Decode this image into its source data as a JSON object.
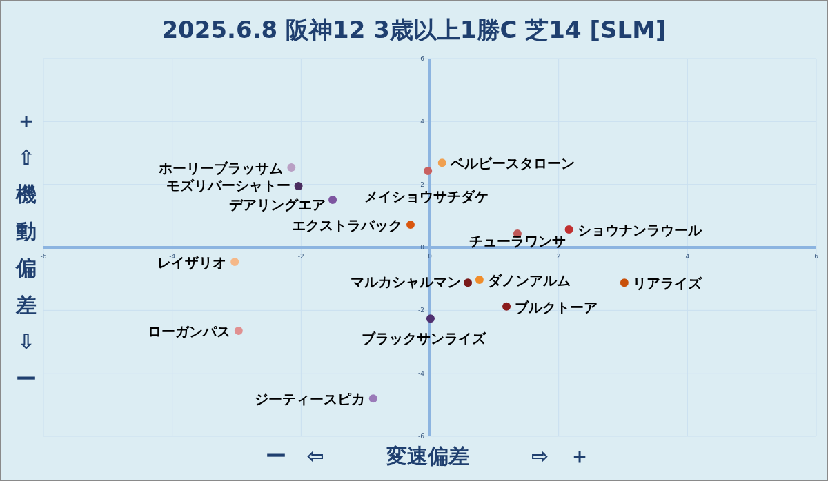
{
  "chart_data": {
    "type": "scatter",
    "title": "2025.6.8 阪神12 3歳以上1勝C 芝14 [SLM]",
    "xlabel": "ー　⇦　　　変速偏差　　　⇨　＋",
    "ylabel": "＋⇧機動偏差⇩ー",
    "xlim": [
      -6,
      6
    ],
    "ylim": [
      -6,
      6
    ],
    "xticks": [
      -6,
      -4,
      -2,
      0,
      2,
      4,
      6
    ],
    "yticks": [
      -6,
      -4,
      -2,
      0,
      2,
      4,
      6
    ],
    "grid": true,
    "legend": false,
    "marker": "circle",
    "series": [
      {
        "name": "ホーリーブラッサム",
        "color": "#b9a0c4",
        "x": [
          -2.15
        ],
        "values": [
          2.54
        ]
      },
      {
        "name": "モズリバーシャトー",
        "color": "#4a2c5e",
        "x": [
          -2.04
        ],
        "values": [
          1.95
        ]
      },
      {
        "name": "デアリングエア",
        "color": "#7d55a0",
        "x": [
          -1.51
        ],
        "values": [
          1.51
        ]
      },
      {
        "name": "エクストラバック",
        "color": "#d9560e",
        "x": [
          -0.3
        ],
        "values": [
          0.72
        ]
      },
      {
        "name": "ベルビースタローン",
        "color": "#f0a050",
        "x": [
          0.19
        ],
        "values": [
          2.69
        ]
      },
      {
        "name": "メイショウサチダケ",
        "color": "#c86060",
        "x": [
          -0.03
        ],
        "values": [
          2.43
        ]
      },
      {
        "name": "ショウナンラウール",
        "color": "#c03030",
        "x": [
          2.16
        ],
        "values": [
          0.57
        ]
      },
      {
        "name": "チューラワンサ",
        "color": "#c05858",
        "x": [
          1.36
        ],
        "values": [
          0.44
        ]
      },
      {
        "name": "レイザリオ",
        "color": "#f5b888",
        "x": [
          -3.03
        ],
        "values": [
          -0.46
        ]
      },
      {
        "name": "マルカシャルマン",
        "color": "#7a1a1a",
        "x": [
          0.59
        ],
        "values": [
          -1.12
        ]
      },
      {
        "name": "ダノンアルム",
        "color": "#f08c2a",
        "x": [
          0.77
        ],
        "values": [
          -1.03
        ]
      },
      {
        "name": "リアライズ",
        "color": "#c8500a",
        "x": [
          3.02
        ],
        "values": [
          -1.12
        ]
      },
      {
        "name": "ブルクトーア",
        "color": "#8a1c1c",
        "x": [
          1.19
        ],
        "values": [
          -1.88
        ]
      },
      {
        "name": "ブラックサンライズ",
        "color": "#503070",
        "x": [
          0.01
        ],
        "values": [
          -2.26
        ]
      },
      {
        "name": "ローガンパス",
        "color": "#e09090",
        "x": [
          -2.97
        ],
        "values": [
          -2.65
        ]
      },
      {
        "name": "ジーティースピカ",
        "color": "#9a7ab8",
        "x": [
          -0.88
        ],
        "values": [
          -4.8
        ]
      }
    ]
  }
}
